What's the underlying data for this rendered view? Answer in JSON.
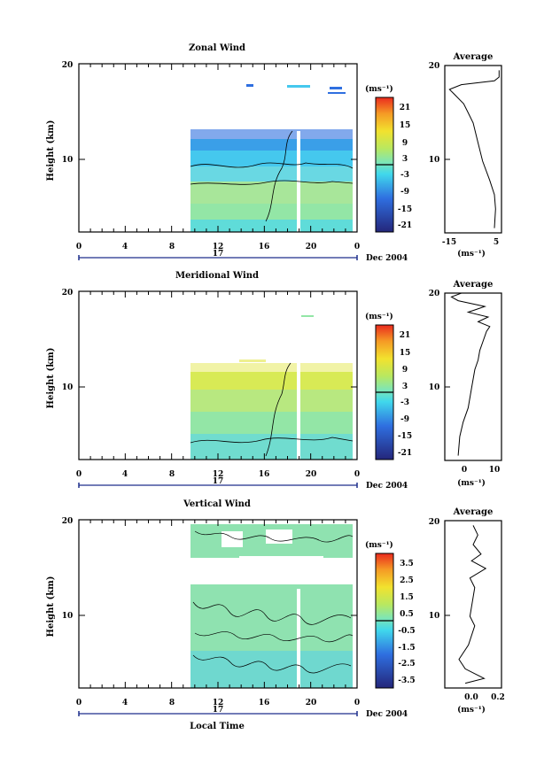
{
  "x_axis_label": "Local Time",
  "date_text": "Dec 2004",
  "day_label": "17",
  "x_ticks": [
    "0",
    "4",
    "8",
    "12",
    "16",
    "20",
    "0"
  ],
  "y_ticks": [
    "20",
    "10"
  ],
  "unit_label": "(ms⁻¹)",
  "average_title": "Average",
  "panels": [
    {
      "title": "Zonal Wind",
      "ylabel": "Height (km)",
      "colorbar_ticks": [
        "21",
        "15",
        "9",
        "3",
        "-3",
        "-9",
        "-15",
        "-21"
      ],
      "avg_ticks": [
        "-15",
        "5"
      ]
    },
    {
      "title": "Meridional Wind",
      "ylabel": "Height (km)",
      "colorbar_ticks": [
        "21",
        "15",
        "9",
        "3",
        "-3",
        "-9",
        "-15",
        "-21"
      ],
      "avg_ticks": [
        "0",
        "10"
      ]
    },
    {
      "title": "Vertical Wind",
      "ylabel": "Height (km)",
      "colorbar_ticks": [
        "3.5",
        "2.5",
        "1.5",
        "0.5",
        "-0.5",
        "-1.5",
        "-2.5",
        "-3.5"
      ],
      "avg_ticks": [
        "0.0",
        "0.2"
      ]
    }
  ],
  "chart_data": [
    {
      "type": "heatmap",
      "title": "Zonal Wind",
      "xlabel": "",
      "ylabel": "Height (km)",
      "xlim": [
        0,
        24
      ],
      "ylim": [
        2.5,
        20
      ],
      "data_hours": [
        9.5,
        23.5
      ],
      "height_top_km": 13,
      "colorbar_range": [
        -24,
        24
      ],
      "value_by_height": [
        [
          3,
          3
        ],
        [
          6,
          2
        ],
        [
          8,
          -3
        ],
        [
          10,
          -6
        ],
        [
          12,
          -12
        ]
      ]
    },
    {
      "type": "line",
      "title": "Average",
      "xlabel": "(ms⁻¹)",
      "ylabel": "",
      "xlim": [
        -17,
        7
      ],
      "ylim": [
        2.5,
        20
      ],
      "points": [
        [
          4,
          3
        ],
        [
          4.5,
          5
        ],
        [
          4,
          6.5
        ],
        [
          2,
          8
        ],
        [
          -1,
          10
        ],
        [
          -3,
          12
        ],
        [
          -5,
          14
        ],
        [
          -7,
          15
        ],
        [
          -9,
          16
        ],
        [
          -13,
          17
        ],
        [
          -15,
          17.5
        ],
        [
          -10,
          18
        ],
        [
          4,
          18.4
        ],
        [
          6,
          18.8
        ],
        [
          6,
          19.5
        ]
      ]
    },
    {
      "type": "heatmap",
      "title": "Meridional Wind",
      "xlabel": "",
      "ylabel": "Height (km)",
      "xlim": [
        0,
        24
      ],
      "ylim": [
        2.5,
        20
      ],
      "data_hours": [
        9.5,
        23.5
      ],
      "height_top_km": 13,
      "colorbar_range": [
        -24,
        24
      ],
      "value_by_height": [
        [
          3,
          1
        ],
        [
          6,
          2
        ],
        [
          8,
          4
        ],
        [
          10,
          6
        ],
        [
          12,
          8
        ]
      ]
    },
    {
      "type": "line",
      "title": "Average",
      "xlabel": "(ms⁻¹)",
      "ylabel": "",
      "xlim": [
        -4,
        13
      ],
      "ylim": [
        2.5,
        20
      ],
      "points": [
        [
          0,
          3
        ],
        [
          0.5,
          5
        ],
        [
          1.5,
          6.5
        ],
        [
          3,
          8
        ],
        [
          4,
          10
        ],
        [
          5,
          12
        ],
        [
          6,
          13
        ],
        [
          6.5,
          14
        ],
        [
          7.5,
          15
        ],
        [
          8.5,
          16
        ],
        [
          9.5,
          16.5
        ],
        [
          6,
          17
        ],
        [
          9,
          17.5
        ],
        [
          3,
          18
        ],
        [
          8,
          18.6
        ],
        [
          0,
          19.2
        ],
        [
          -2,
          19.6
        ],
        [
          1,
          20
        ]
      ]
    },
    {
      "type": "heatmap",
      "title": "Vertical Wind",
      "xlabel": "Local Time",
      "ylabel": "Height (km)",
      "xlim": [
        0,
        24
      ],
      "ylim": [
        2.5,
        20
      ],
      "data_hours": [
        9.5,
        23.5
      ],
      "colorbar_range": [
        -4,
        4
      ],
      "value_by_height": [
        [
          3,
          0
        ],
        [
          8,
          0.3
        ],
        [
          12,
          0.2
        ],
        [
          15,
          0
        ],
        [
          18,
          0.3
        ]
      ]
    },
    {
      "type": "line",
      "title": "Average",
      "xlabel": "(ms⁻¹)",
      "ylabel": "",
      "xlim": [
        -0.13,
        0.23
      ],
      "ylim": [
        2.5,
        20
      ],
      "points": [
        [
          0.0,
          3
        ],
        [
          0.12,
          3.5
        ],
        [
          0.0,
          4.5
        ],
        [
          -0.04,
          5.5
        ],
        [
          0.02,
          7
        ],
        [
          0.06,
          9
        ],
        [
          0.03,
          10
        ],
        [
          0.05,
          12
        ],
        [
          0.06,
          13
        ],
        [
          0.03,
          14
        ],
        [
          0.13,
          15
        ],
        [
          0.04,
          15.8
        ],
        [
          0.1,
          16.5
        ],
        [
          0.05,
          17.5
        ],
        [
          0.08,
          18.5
        ],
        [
          0.05,
          19.5
        ]
      ]
    }
  ]
}
